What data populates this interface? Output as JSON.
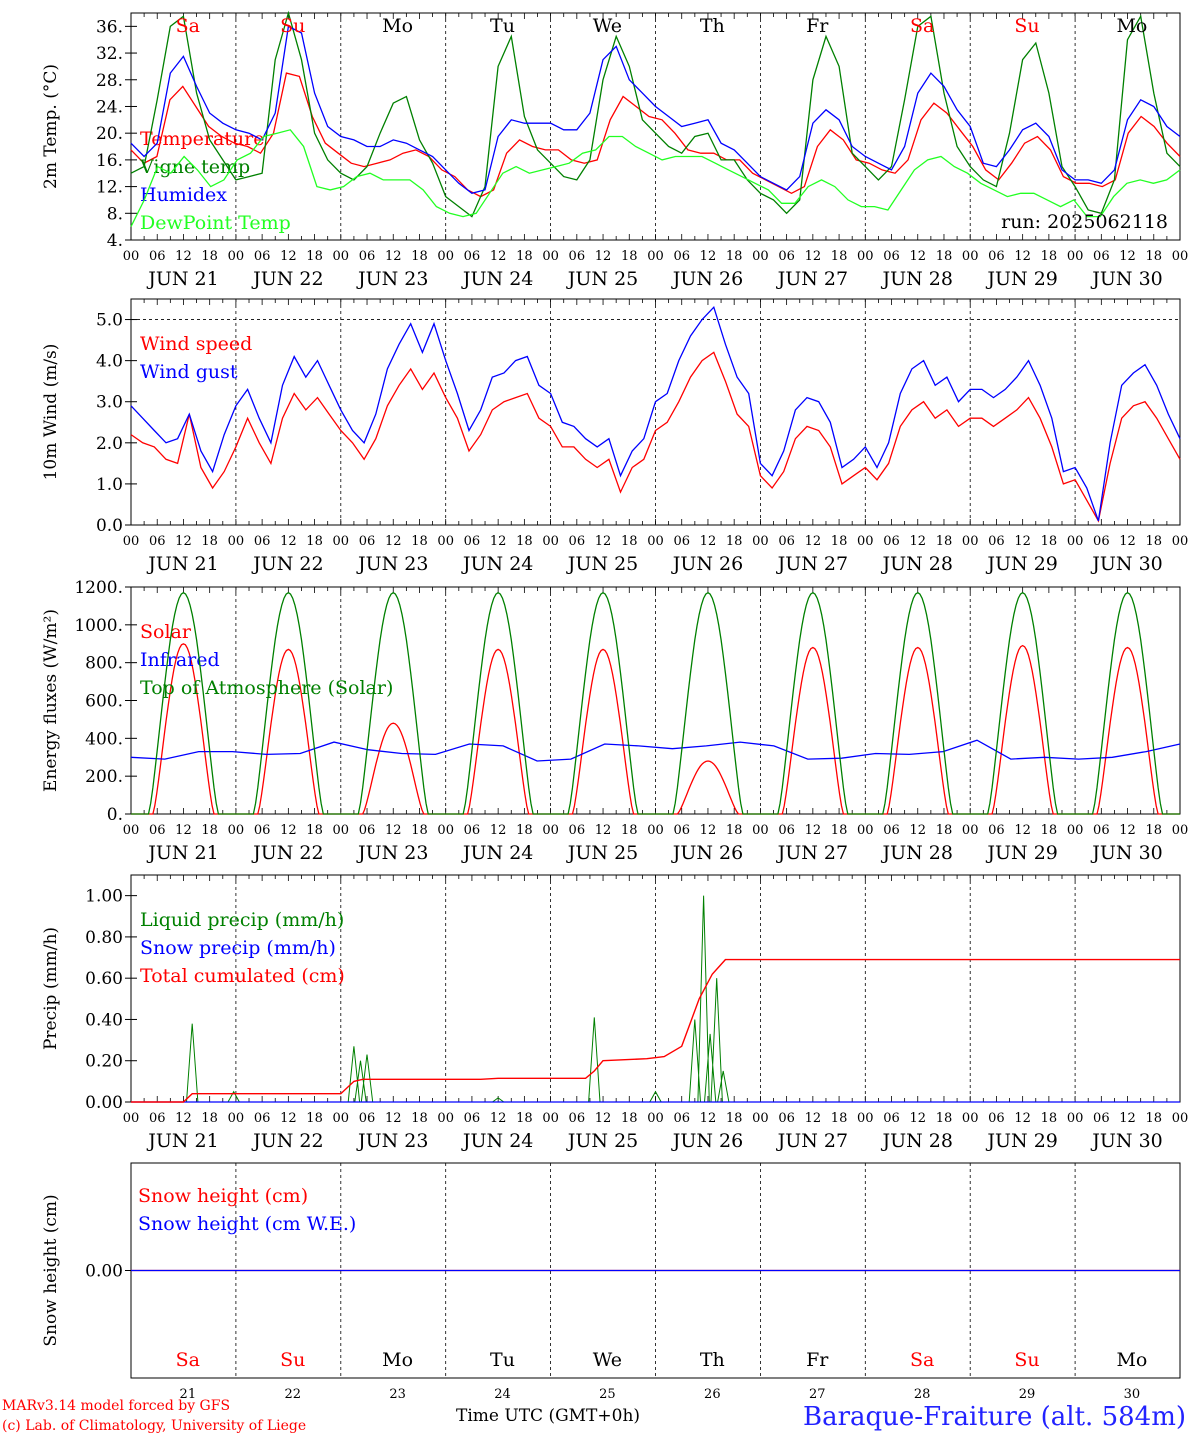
{
  "chart_data": {
    "type": "line",
    "run_label": "run: 2025062118",
    "days": [
      "JUN 21",
      "JUN 22",
      "JUN 23",
      "JUN 24",
      "JUN 25",
      "JUN 26",
      "JUN 27",
      "JUN 28",
      "JUN 29",
      "JUN 30"
    ],
    "weekdays": [
      "Sa",
      "Su",
      "Mo",
      "Tu",
      "We",
      "Th",
      "Fr",
      "Sa",
      "Su",
      "Mo"
    ],
    "weekday_colors": [
      "#ff0000",
      "#ff0000",
      "#000000",
      "#000000",
      "#000000",
      "#000000",
      "#000000",
      "#ff0000",
      "#ff0000",
      "#000000"
    ],
    "day_numbers": [
      "21",
      "22",
      "23",
      "24",
      "25",
      "26",
      "27",
      "28",
      "29",
      "30"
    ],
    "hour_ticks": [
      "00",
      "06",
      "12",
      "18"
    ],
    "hours_end_label": "00",
    "panels": [
      {
        "ylabel": "2m Temp. (°C)",
        "ylim": [
          4,
          38
        ],
        "ytick_values": [
          4,
          8,
          12,
          16,
          20,
          24,
          28,
          32,
          36
        ],
        "yticks": [
          "4.",
          "8.",
          "12.",
          "16.",
          "20.",
          "24.",
          "28.",
          "32.",
          "36."
        ],
        "series": [
          {
            "name": "Temperature",
            "color": "#ff0000",
            "values": [
              17.5,
              15.5,
              16.5,
              25,
              27,
              24,
              21,
              19.5,
              18.5,
              18,
              17,
              20,
              29,
              28.5,
              22.5,
              18.5,
              17,
              15.5,
              15,
              15.5,
              16,
              17,
              17.5,
              16.5,
              14.5,
              13.5,
              11.5,
              10.5,
              11.5,
              17,
              19,
              18,
              17.5,
              17.5,
              16,
              15.5,
              16,
              22,
              25.5,
              24,
              22.5,
              22,
              20,
              17.5,
              17,
              17,
              16,
              16,
              14,
              13,
              12,
              11,
              12,
              18,
              20.5,
              19,
              16,
              15.5,
              14.5,
              14,
              16,
              22,
              24.5,
              23,
              20.5,
              18,
              14.5,
              13,
              15.5,
              18.5,
              19.5,
              17.5,
              13.5,
              12.5,
              12.5,
              12,
              13,
              20,
              22.5,
              21,
              18.5,
              16.5
            ]
          },
          {
            "name": "Vigne temp",
            "color": "#008000",
            "values": [
              14,
              15,
              25,
              36,
              37.5,
              26,
              19,
              16,
              13,
              13.5,
              14,
              31,
              38,
              31,
              20,
              16,
              14,
              13,
              15,
              20,
              24.5,
              25.5,
              19,
              15.5,
              10.5,
              9,
              7.5,
              12,
              30,
              34.5,
              22.5,
              17.5,
              15.5,
              13.5,
              13,
              16,
              28,
              34.5,
              30,
              22,
              20,
              18,
              17,
              19.5,
              20,
              16,
              16,
              13,
              11,
              10,
              8,
              10,
              28,
              34.5,
              30,
              17,
              15,
              13,
              15,
              25,
              36,
              37.5,
              26,
              18,
              15,
              13,
              12,
              20,
              31,
              33.5,
              26,
              15,
              12,
              8.5,
              8,
              13,
              34,
              37.5,
              26,
              17,
              15
            ]
          },
          {
            "name": "Humidex",
            "color": "#0000ff",
            "values": [
              18.5,
              16.5,
              18.5,
              29,
              31.5,
              27,
              23,
              21.5,
              20.5,
              20,
              19,
              23,
              36,
              35,
              26,
              21,
              19.5,
              19,
              18,
              18,
              19,
              18.5,
              17.5,
              16.5,
              14.5,
              12.5,
              11,
              11.5,
              19.5,
              22,
              21.5,
              21.5,
              21.5,
              20.5,
              20.5,
              23,
              31,
              33,
              28,
              26,
              24,
              22.5,
              21,
              21.5,
              22,
              18.5,
              17.5,
              15.5,
              13.5,
              12.5,
              11.5,
              13.5,
              21.5,
              23.5,
              22,
              18,
              16.5,
              15.5,
              14.5,
              18,
              26,
              29,
              27,
              23.5,
              21,
              15.5,
              15,
              17.5,
              20.5,
              21.5,
              19.5,
              14.5,
              13,
              13,
              12.5,
              14.5,
              22,
              25,
              24,
              21,
              19.5
            ]
          },
          {
            "name": "DewPoint Temp",
            "color": "#22ff22",
            "values": [
              6,
              10,
              15,
              14,
              16.5,
              14.5,
              12,
              13,
              16,
              17,
              19.5,
              20,
              20.5,
              18,
              12,
              11.5,
              12,
              13.5,
              14,
              13,
              13,
              13,
              11.5,
              9,
              8,
              7.5,
              8,
              11,
              14,
              15,
              14,
              14.5,
              15,
              15.5,
              17,
              17.5,
              19.5,
              19.5,
              18,
              17,
              16,
              16.5,
              16.5,
              16.5,
              15.5,
              14.5,
              13.5,
              12.5,
              11.5,
              9.5,
              9.5,
              12,
              13,
              12,
              10,
              9,
              9,
              8.5,
              11.5,
              14.5,
              16,
              16.5,
              15,
              14,
              12.5,
              11.5,
              10.5,
              11,
              11,
              10,
              9,
              10,
              7.5,
              7.5,
              10.5,
              12.5,
              13,
              12.5,
              13,
              14.5
            ]
          }
        ],
        "dashed_line": null
      },
      {
        "ylabel": "10m Wind (m/s)",
        "ylim": [
          0,
          5.5
        ],
        "ytick_values": [
          0,
          1,
          2,
          3,
          4,
          5
        ],
        "yticks": [
          "0.0",
          "1.0",
          "2.0",
          "3.0",
          "4.0",
          "5.0"
        ],
        "series": [
          {
            "name": "Wind speed",
            "color": "#ff0000",
            "values": [
              2.2,
              2.0,
              1.9,
              1.6,
              1.5,
              2.7,
              1.4,
              0.9,
              1.3,
              1.9,
              2.6,
              2.0,
              1.5,
              2.6,
              3.2,
              2.8,
              3.1,
              2.7,
              2.3,
              2.0,
              1.6,
              2.1,
              2.9,
              3.4,
              3.8,
              3.3,
              3.7,
              3.1,
              2.6,
              1.8,
              2.2,
              2.8,
              3.0,
              3.1,
              3.2,
              2.6,
              2.4,
              1.9,
              1.9,
              1.6,
              1.4,
              1.6,
              0.8,
              1.4,
              1.6,
              2.3,
              2.5,
              3.0,
              3.6,
              4.0,
              4.2,
              3.5,
              2.7,
              2.4,
              1.2,
              0.9,
              1.3,
              2.1,
              2.4,
              2.3,
              1.9,
              1.0,
              1.2,
              1.4,
              1.1,
              1.5,
              2.4,
              2.8,
              3.0,
              2.6,
              2.8,
              2.4,
              2.6,
              2.6,
              2.4,
              2.6,
              2.8,
              3.1,
              2.6,
              1.9,
              1.0,
              1.1,
              0.6,
              0.1,
              1.5,
              2.6,
              2.9,
              3.0,
              2.6,
              2.1,
              1.6
            ]
          },
          {
            "name": "Wind gust",
            "color": "#0000ff",
            "values": [
              2.9,
              2.6,
              2.3,
              2.0,
              2.1,
              2.7,
              1.8,
              1.3,
              2.2,
              2.9,
              3.3,
              2.6,
              2.0,
              3.4,
              4.1,
              3.6,
              4.0,
              3.4,
              2.8,
              2.3,
              2.0,
              2.7,
              3.8,
              4.4,
              4.9,
              4.2,
              4.9,
              4.0,
              3.2,
              2.3,
              2.8,
              3.6,
              3.7,
              4.0,
              4.1,
              3.4,
              3.2,
              2.5,
              2.4,
              2.1,
              1.9,
              2.1,
              1.2,
              1.8,
              2.1,
              3.0,
              3.2,
              4.0,
              4.6,
              5.0,
              5.3,
              4.4,
              3.6,
              3.2,
              1.5,
              1.2,
              1.8,
              2.8,
              3.1,
              3.0,
              2.5,
              1.4,
              1.6,
              1.9,
              1.4,
              2.0,
              3.2,
              3.8,
              4.0,
              3.4,
              3.6,
              3.0,
              3.3,
              3.3,
              3.1,
              3.3,
              3.6,
              4.0,
              3.4,
              2.6,
              1.3,
              1.4,
              0.9,
              0.1,
              2.0,
              3.4,
              3.7,
              3.9,
              3.4,
              2.7,
              2.1
            ]
          }
        ],
        "dashed_line": 5.0
      },
      {
        "ylabel": "Energy fluxes (W/m²)",
        "ylim": [
          0,
          1200
        ],
        "ytick_values": [
          0,
          200,
          400,
          600,
          800,
          1000,
          1200
        ],
        "yticks": [
          "0.",
          "200.",
          "400.",
          "600.",
          "800.",
          "1000.",
          "1200."
        ],
        "series": [
          {
            "name": "Solar",
            "color": "#ff0000",
            "day_peaks": [
              900,
              870,
              480,
              870,
              870,
              280,
              880,
              880,
              890,
              880
            ]
          },
          {
            "name": "Infrared",
            "color": "#0000ff",
            "values": [
              300,
              290,
              330,
              330,
              315,
              320,
              380,
              340,
              320,
              315,
              370,
              360,
              280,
              290,
              370,
              360,
              345,
              360,
              380,
              360,
              290,
              295,
              320,
              315,
              330,
              390,
              290,
              300,
              290,
              300,
              330,
              370
            ]
          },
          {
            "name": "Top of Atmosphere (Solar)",
            "color": "#008000",
            "day_peaks": [
              1170,
              1170,
              1170,
              1170,
              1170,
              1170,
              1170,
              1170,
              1170,
              1170
            ]
          }
        ],
        "dashed_line": null
      },
      {
        "ylabel": "Precip (mm/h)",
        "ylim": [
          0,
          1.1
        ],
        "ytick_values": [
          0,
          0.2,
          0.4,
          0.6,
          0.8,
          1.0
        ],
        "yticks": [
          "0.00",
          "0.20",
          "0.40",
          "0.60",
          "0.80",
          "1.00"
        ],
        "series": [
          {
            "name": "Liquid precip (mm/h)",
            "color": "#008000",
            "events": [
              {
                "t": 14,
                "v": 0.38
              },
              {
                "t": 23.5,
                "v": 0.05
              },
              {
                "t": 51,
                "v": 0.27
              },
              {
                "t": 52.5,
                "v": 0.2
              },
              {
                "t": 54,
                "v": 0.23
              },
              {
                "t": 84,
                "v": 0.02
              },
              {
                "t": 106,
                "v": 0.41
              },
              {
                "t": 120,
                "v": 0.05
              },
              {
                "t": 129,
                "v": 0.4
              },
              {
                "t": 131,
                "v": 1.0
              },
              {
                "t": 132.5,
                "v": 0.33
              },
              {
                "t": 134,
                "v": 0.6
              },
              {
                "t": 135.5,
                "v": 0.15
              }
            ]
          },
          {
            "name": "Snow precip (mm/h)",
            "color": "#0000ff",
            "values": [
              0
            ]
          },
          {
            "name": "Total cumulated (cm)",
            "color": "#ff0000",
            "points": [
              [
                0,
                0
              ],
              [
                12,
                0
              ],
              [
                14,
                0.04
              ],
              [
                48,
                0.04
              ],
              [
                51,
                0.1
              ],
              [
                53,
                0.11
              ],
              [
                80,
                0.11
              ],
              [
                84,
                0.115
              ],
              [
                104,
                0.115
              ],
              [
                106,
                0.15
              ],
              [
                108,
                0.2
              ],
              [
                118,
                0.21
              ],
              [
                122,
                0.22
              ],
              [
                126,
                0.27
              ],
              [
                130,
                0.5
              ],
              [
                133,
                0.62
              ],
              [
                136,
                0.69
              ],
              [
                240,
                0.69
              ]
            ]
          }
        ],
        "dashed_line": null
      },
      {
        "ylabel": "Snow height (cm)",
        "ylim": [
          -1,
          1
        ],
        "ytick_values": [
          0
        ],
        "yticks": [
          "0.00"
        ],
        "series": [
          {
            "name": "Snow height (cm)",
            "color": "#ff0000",
            "values": [
              0
            ]
          },
          {
            "name": "Snow height (cm W.E.)",
            "color": "#0000ff",
            "values": [
              0
            ]
          }
        ],
        "dashed_line": null
      }
    ]
  },
  "footer": {
    "credit_line1": "MARv3.14 model forced by GFS",
    "credit_line2": "(c) Lab. of Climatology, University of Liege",
    "xaxis_title": "Time UTC (GMT+0h)",
    "station": "Baraque-Fraiture (alt. 584m)"
  }
}
